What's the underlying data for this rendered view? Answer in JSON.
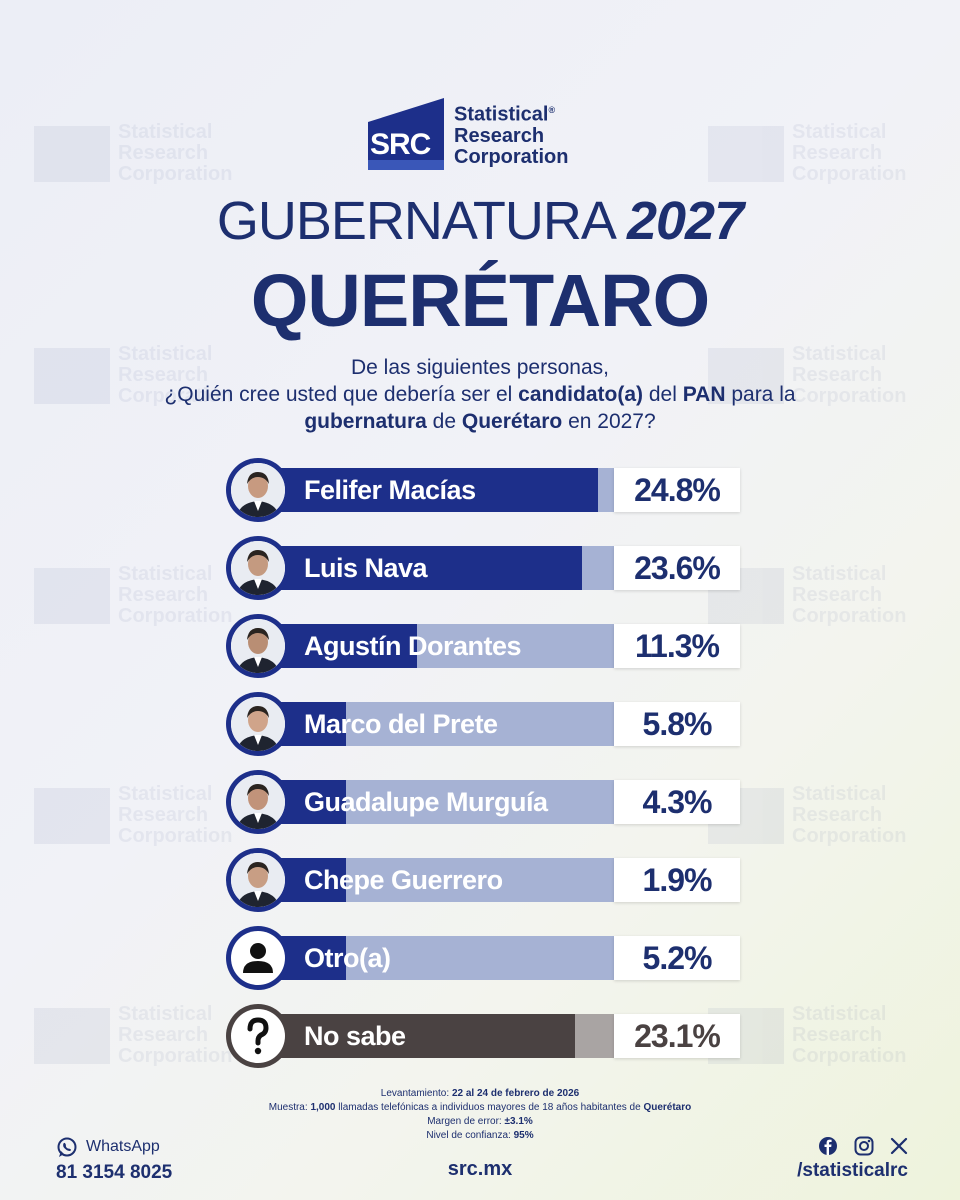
{
  "brand": {
    "mark": "SRC",
    "name_line1": "Statistical",
    "registered": "®",
    "name_line2": "Research",
    "name_line3": "Corporation"
  },
  "title": {
    "line1": "GUBERNATURA",
    "year": "2027",
    "line2": "QUERÉTARO"
  },
  "question": {
    "line1": "De las siguientes personas,",
    "line2_a": "¿Quién cree usted que debería ser el ",
    "line2_b": "candidato(a)",
    "line2_c": " del ",
    "line2_d": "PAN",
    "line2_e": " para la",
    "line3_a": "gubernatura",
    "line3_b": " de ",
    "line3_c": "Querétaro",
    "line3_d": " en 2027?"
  },
  "chart_data": {
    "type": "bar",
    "orientation": "horizontal",
    "title": "GUBERNATURA 2027 QUERÉTARO",
    "unit": "%",
    "xlim": [
      0,
      100
    ],
    "categories": [
      "Felifer Macías",
      "Luis Nava",
      "Agustín Dorantes",
      "Marco del Prete",
      "Guadalupe Murguía",
      "Chepe Guerrero",
      "Otro(a)",
      "No sabe"
    ],
    "values": [
      24.8,
      23.6,
      11.3,
      5.8,
      4.3,
      1.9,
      5.2,
      23.1
    ],
    "labels": [
      "24.8%",
      "23.6%",
      "11.3%",
      "5.8%",
      "4.3%",
      "1.9%",
      "5.2%",
      "23.1%"
    ]
  },
  "colors": {
    "navy": "#1d2f8a",
    "track": "#a6b2d4",
    "nosabe_fill": "#4a4242",
    "nosabe_track": "#a9a4a3"
  },
  "notes": {
    "levantamiento_label": "Levantamiento: ",
    "levantamiento_value": "22 al 24 de febrero de 2026",
    "muestra_label": "Muestra: ",
    "muestra_value": "1,000",
    "muestra_text": " llamadas telefónicas a individuos mayores de 18 años habitantes de ",
    "muestra_place": "Querétaro",
    "margen_label": "Margen de error: ",
    "margen_value": "±3.1%",
    "confianza_label": "Nivel de confianza: ",
    "confianza_value": "95%"
  },
  "footer": {
    "whatsapp_label": "WhatsApp",
    "phone": "81 3154 8025",
    "website": "src.mx",
    "social_handle": "/statisticalrc"
  },
  "icons": [
    "whatsapp-icon",
    "facebook-icon",
    "instagram-icon",
    "x-icon",
    "person-icon",
    "question-icon"
  ]
}
